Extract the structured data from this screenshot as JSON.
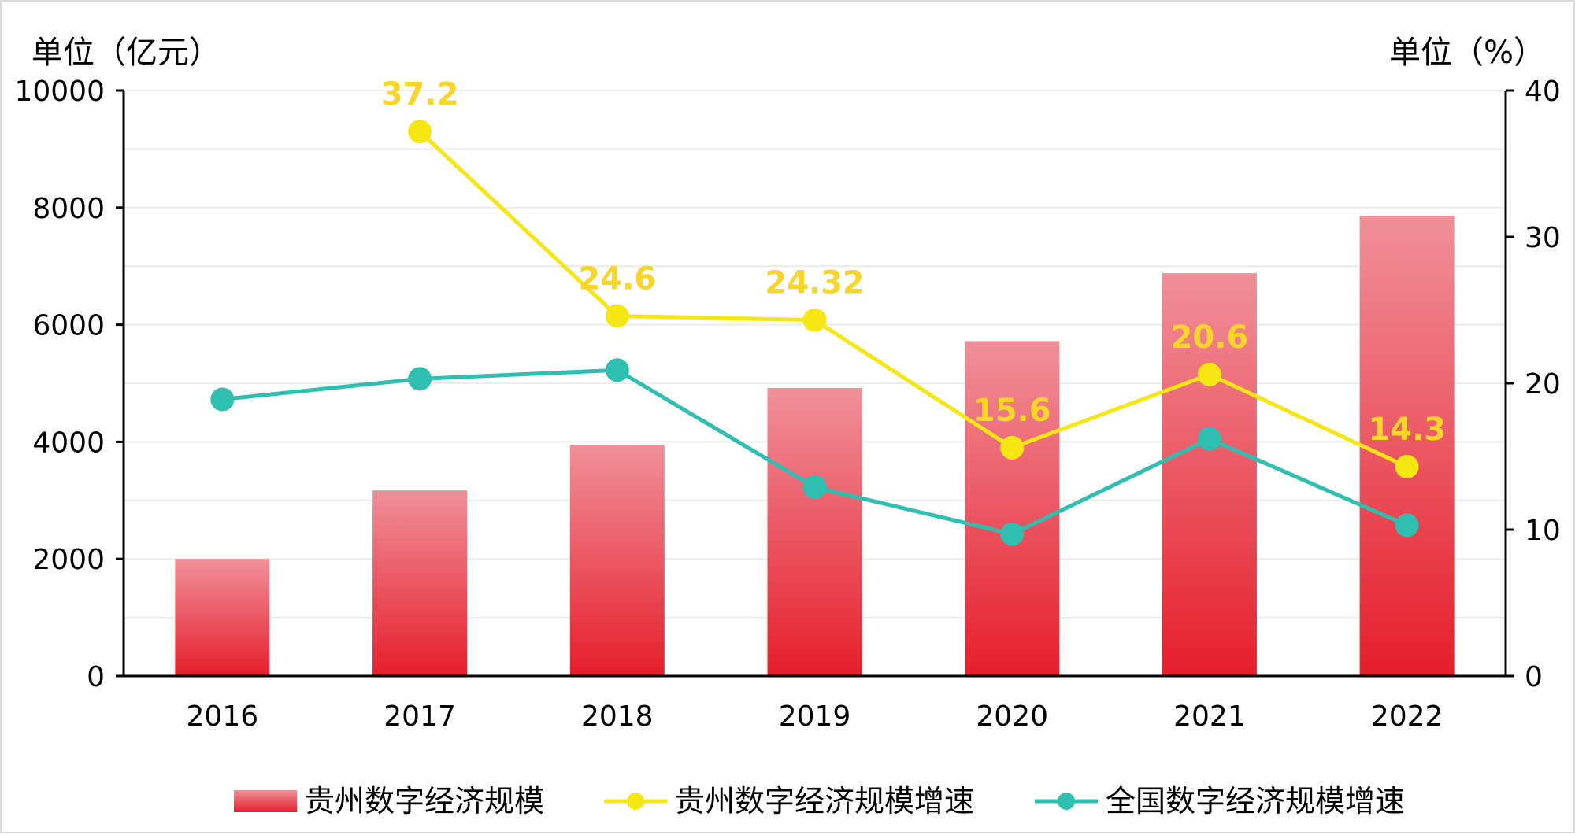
{
  "chart_data": {
    "type": "bar",
    "categories": [
      "2016",
      "2017",
      "2018",
      "2019",
      "2020",
      "2021",
      "2022"
    ],
    "left_axis": {
      "unit_label": "单位（亿元）",
      "ylim": [
        0,
        10000
      ],
      "ticks": [
        0,
        2000,
        4000,
        6000,
        8000,
        10000
      ]
    },
    "right_axis": {
      "unit_label": "单位（%）",
      "ylim": [
        0,
        40
      ],
      "ticks": [
        0,
        10,
        20,
        30,
        40
      ]
    },
    "grid": true,
    "legend_position": "bottom",
    "series": [
      {
        "name": "贵州数字经济规模",
        "type": "bar",
        "axis": "left",
        "color": "#e8202e",
        "values": [
          2000,
          3170,
          3950,
          4920,
          5720,
          6880,
          7860
        ]
      },
      {
        "name": "贵州数字经济规模增速",
        "type": "line",
        "axis": "right",
        "color": "#f5e614",
        "label_color": "#f7d52a",
        "values": [
          null,
          37.2,
          24.6,
          24.32,
          15.6,
          20.6,
          14.3
        ],
        "labels": [
          "",
          "37.2",
          "24.6",
          "24.32",
          "15.6",
          "20.6",
          "14.3"
        ]
      },
      {
        "name": "全国数字经济规模增速",
        "type": "line",
        "axis": "right",
        "color": "#2fbfb1",
        "values": [
          18.9,
          20.3,
          20.9,
          12.9,
          9.7,
          16.2,
          10.3
        ]
      }
    ]
  }
}
